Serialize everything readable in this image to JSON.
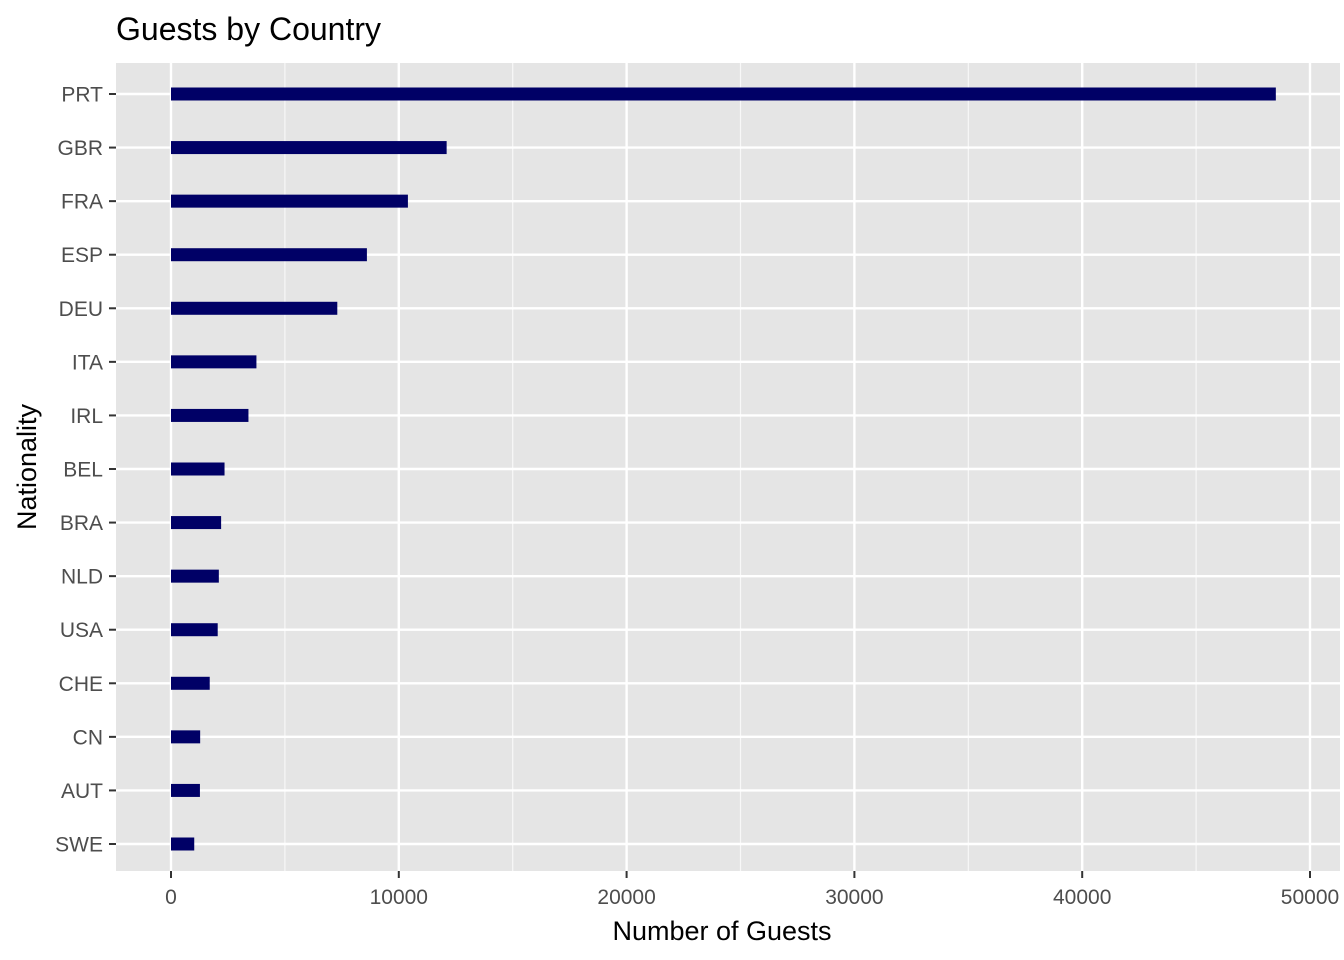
{
  "chart_data": {
    "type": "bar",
    "orientation": "horizontal",
    "title": "Guests by Country",
    "xlabel": "Number of Guests",
    "ylabel": "Nationality",
    "categories": [
      "PRT",
      "GBR",
      "FRA",
      "ESP",
      "DEU",
      "ITA",
      "IRL",
      "BEL",
      "BRA",
      "NLD",
      "USA",
      "CHE",
      "CN",
      "AUT",
      "SWE"
    ],
    "values": [
      48500,
      12100,
      10400,
      8600,
      7300,
      3750,
      3400,
      2350,
      2200,
      2100,
      2050,
      1700,
      1280,
      1270,
      1020
    ],
    "xlim": [
      -2400,
      50000
    ],
    "xticks": [
      0,
      10000,
      20000,
      30000,
      40000,
      50000
    ],
    "xtick_labels": [
      "0",
      "10000",
      "20000",
      "30000",
      "40000",
      "50000"
    ],
    "grid": true,
    "legend": "none",
    "colors": {
      "bar": "#000066",
      "panel_background": "#e5e5e5",
      "grid": "#ffffff",
      "tick_label": "#4d4d4d"
    }
  }
}
